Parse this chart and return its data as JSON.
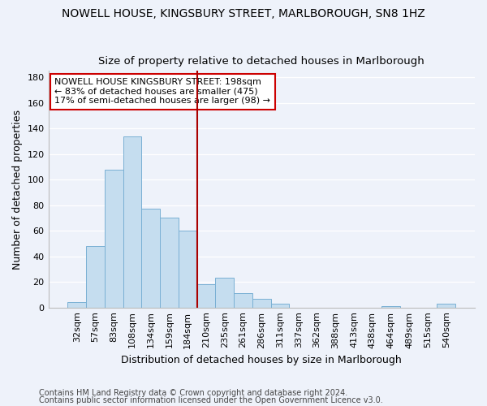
{
  "title1": "NOWELL HOUSE, KINGSBURY STREET, MARLBOROUGH, SN8 1HZ",
  "title2": "Size of property relative to detached houses in Marlborough",
  "xlabel": "Distribution of detached houses by size in Marlborough",
  "ylabel": "Number of detached properties",
  "categories": [
    "32sqm",
    "57sqm",
    "83sqm",
    "108sqm",
    "134sqm",
    "159sqm",
    "184sqm",
    "210sqm",
    "235sqm",
    "261sqm",
    "286sqm",
    "311sqm",
    "337sqm",
    "362sqm",
    "388sqm",
    "413sqm",
    "438sqm",
    "464sqm",
    "489sqm",
    "515sqm",
    "540sqm"
  ],
  "values": [
    4,
    48,
    108,
    134,
    77,
    70,
    60,
    18,
    23,
    11,
    7,
    3,
    0,
    0,
    0,
    0,
    0,
    1,
    0,
    0,
    3
  ],
  "bar_color": "#c5ddef",
  "bar_edge_color": "#7ab0d4",
  "vline_index": 7,
  "annotation_text": "NOWELL HOUSE KINGSBURY STREET: 198sqm\n← 83% of detached houses are smaller (475)\n17% of semi-detached houses are larger (98) →",
  "annotation_box_color": "#ffffff",
  "annotation_box_edge": "#cc0000",
  "vline_color": "#aa0000",
  "footnote1": "Contains HM Land Registry data © Crown copyright and database right 2024.",
  "footnote2": "Contains public sector information licensed under the Open Government Licence v3.0.",
  "ylim": [
    0,
    185
  ],
  "yticks": [
    0,
    20,
    40,
    60,
    80,
    100,
    120,
    140,
    160,
    180
  ],
  "bg_color": "#eef2fa",
  "grid_color": "#ffffff",
  "title1_fontsize": 10,
  "title2_fontsize": 9.5,
  "axis_label_fontsize": 9,
  "tick_fontsize": 8,
  "footnote_fontsize": 7
}
